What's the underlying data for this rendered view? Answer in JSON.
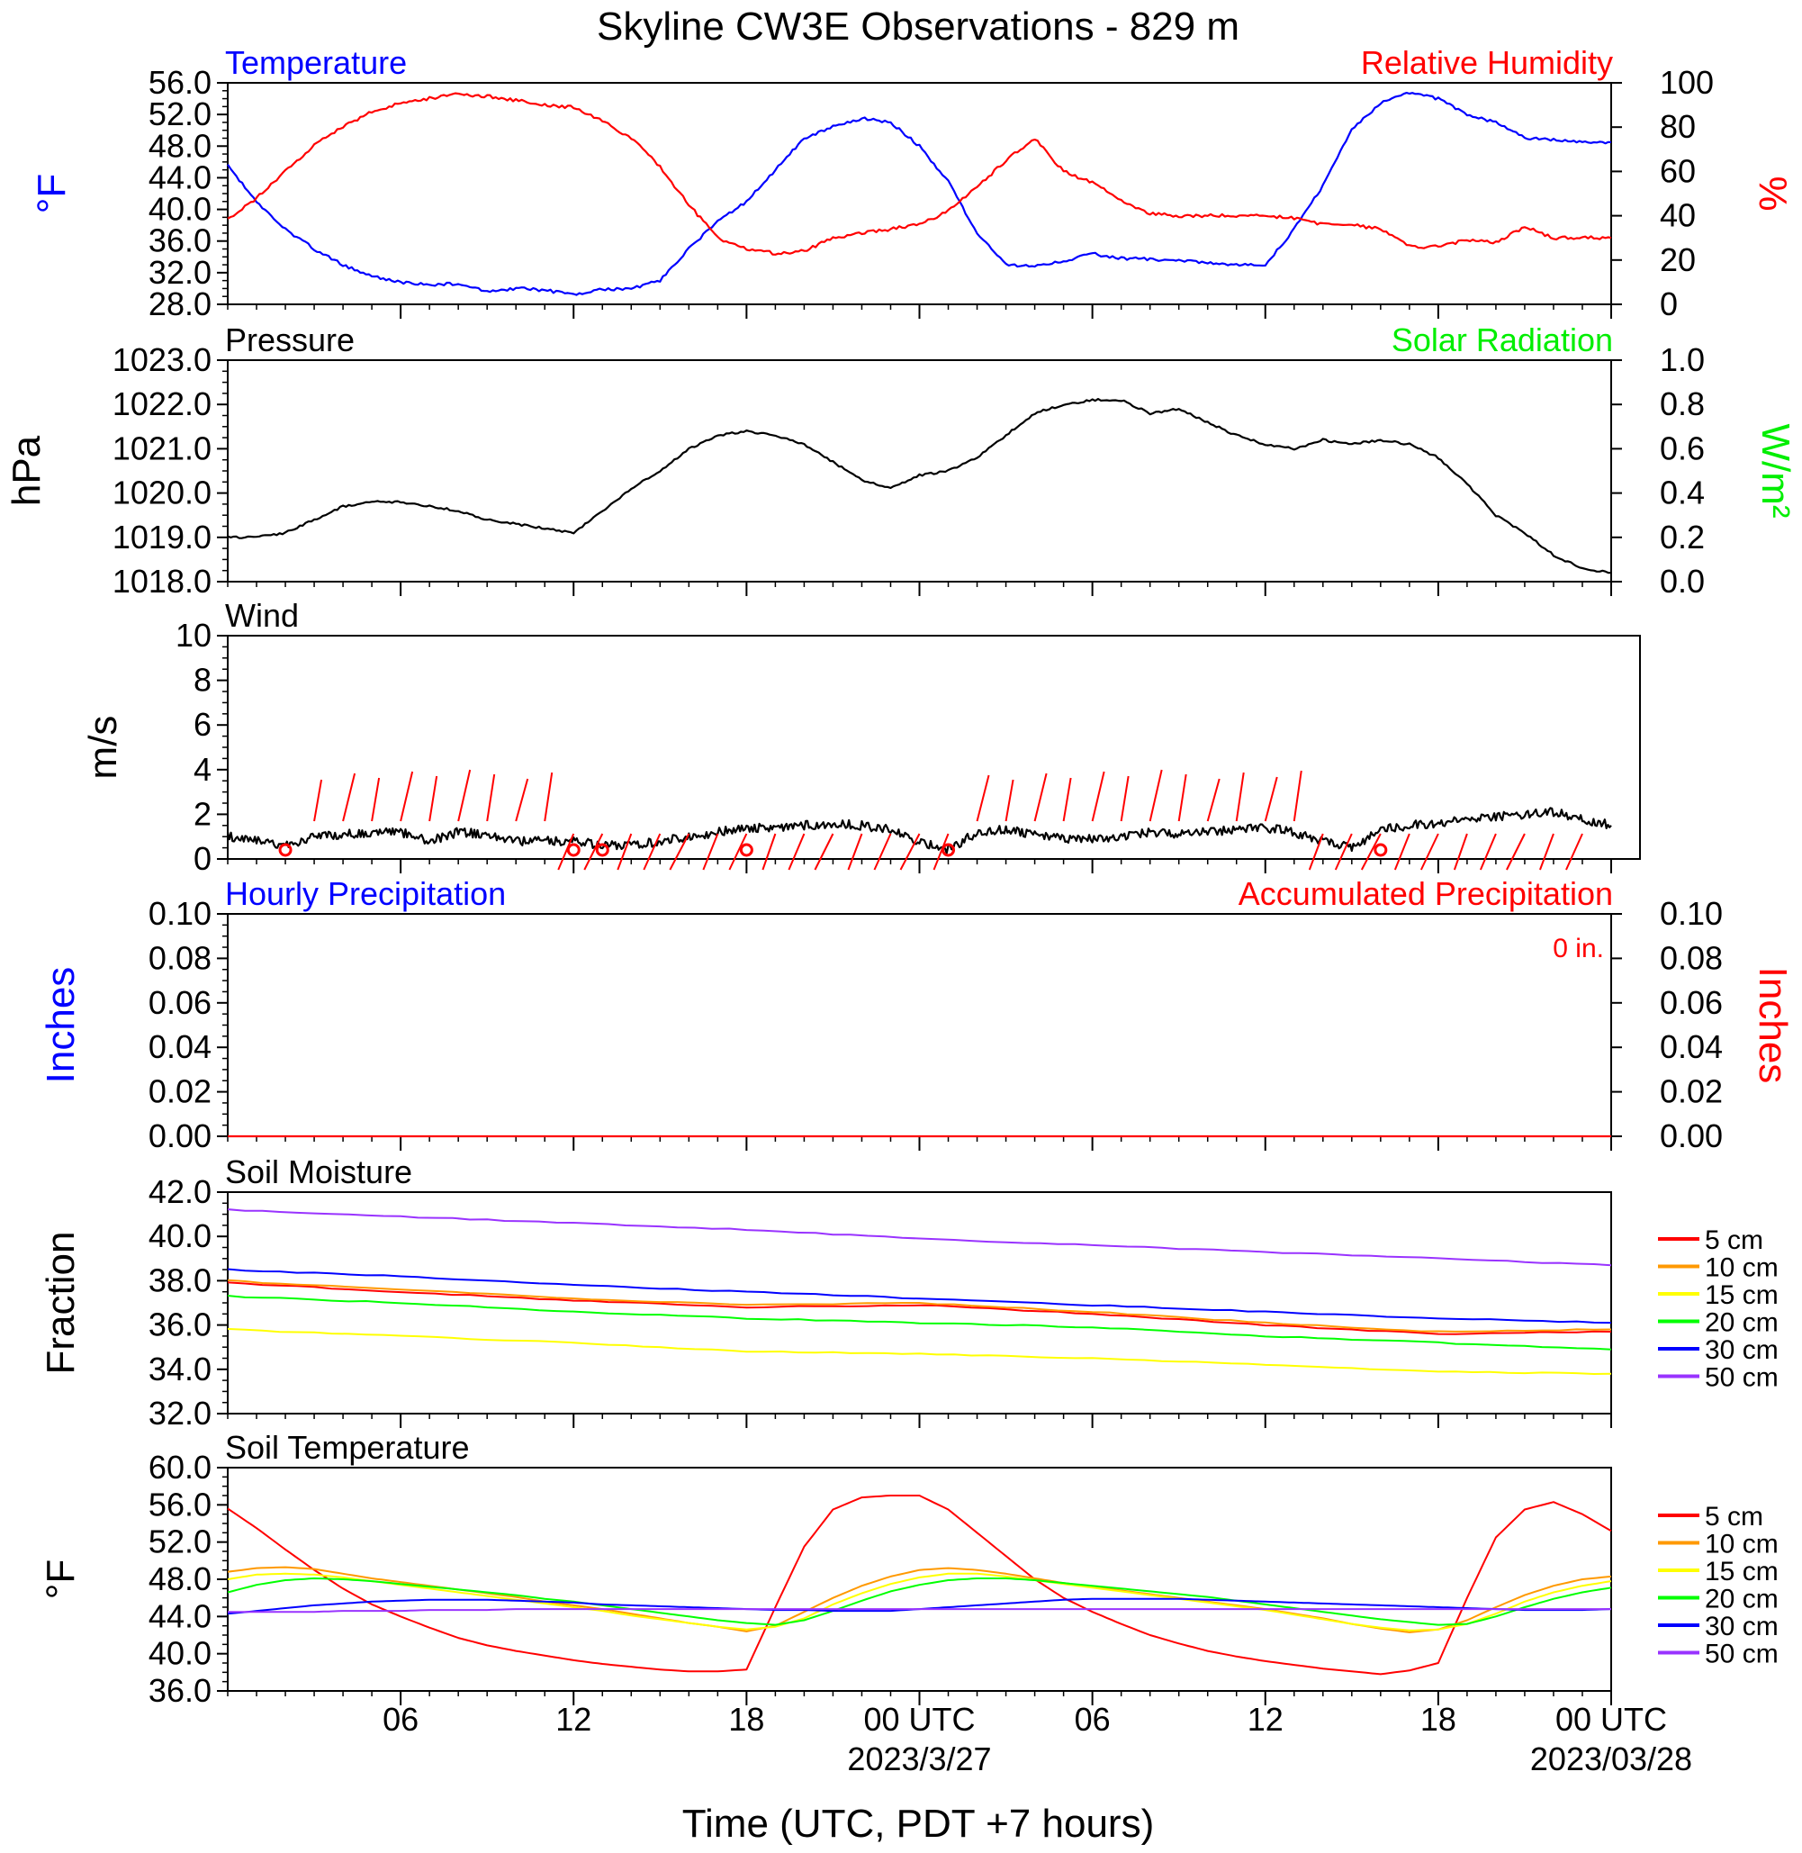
{
  "title": "Skyline CW3E Observations - 829 m",
  "xaxis": {
    "label": "Time (UTC, PDT +7 hours)",
    "ticks": [
      "06",
      "12",
      "18",
      "00 UTC",
      "06",
      "12",
      "18",
      "00 UTC"
    ],
    "dates": [
      "2023/3/27",
      "2023/03/28"
    ]
  },
  "colors": {
    "blue": "#0000ff",
    "red": "#ff0000",
    "green": "#00ff00",
    "black": "#000000"
  },
  "chart_data": [
    {
      "id": "temp_rh",
      "type": "line",
      "title_left": "Temperature",
      "title_right": "Relative Humidity",
      "ylabel_left": "°F",
      "ylabel_right": "%",
      "ylim": [
        28,
        56
      ],
      "ylim_right": [
        0,
        100
      ],
      "yticks": [
        "28.0",
        "32.0",
        "36.0",
        "40.0",
        "44.0",
        "48.0",
        "52.0",
        "56.0"
      ],
      "yticks_right": [
        "0",
        "20",
        "40",
        "60",
        "80",
        "100"
      ],
      "x_hours": [
        0,
        1,
        2,
        3,
        4,
        5,
        6,
        7,
        8,
        9,
        10,
        11,
        12,
        13,
        14,
        15,
        16,
        17,
        18,
        19,
        20,
        21,
        22,
        23,
        24,
        25,
        26,
        27,
        28,
        29,
        30,
        31,
        32,
        33,
        34,
        35,
        36,
        37,
        38,
        39,
        40,
        41,
        42,
        43,
        44,
        45,
        46,
        47,
        48
      ],
      "series": [
        {
          "name": "Temperature",
          "color": "#0000ff",
          "axis": "left",
          "values": [
            45.5,
            41,
            37.5,
            35,
            33,
            31.5,
            30.8,
            30.5,
            30.6,
            29.7,
            30,
            29.8,
            29.2,
            29.9,
            30,
            31,
            35,
            38.5,
            41,
            45,
            49,
            50.5,
            51.5,
            51,
            48,
            43.5,
            37,
            33,
            32.8,
            33.5,
            34.4,
            33.8,
            33.7,
            33.5,
            33.3,
            33,
            33,
            37.5,
            43,
            50,
            53.5,
            54.8,
            54,
            52,
            51,
            49,
            48.8,
            48.5,
            48.5
          ]
        },
        {
          "name": "Relative Humidity",
          "color": "#ff0000",
          "axis": "right",
          "values": [
            38,
            48,
            60,
            72,
            80,
            87,
            91,
            93,
            95,
            94,
            92,
            90,
            89,
            83,
            75,
            62,
            45,
            30,
            25,
            23,
            24,
            30,
            32,
            34,
            36,
            42,
            53,
            65,
            75,
            60,
            55,
            47,
            41,
            40,
            40,
            40,
            40,
            39,
            36,
            36,
            34,
            26,
            26,
            29,
            28,
            35,
            30,
            30,
            30
          ]
        }
      ]
    },
    {
      "id": "pressure",
      "type": "line",
      "title_left": "Pressure",
      "title_right": "Solar Radiation",
      "ylabel_left": "hPa",
      "ylabel_right": "W/m²",
      "ylim": [
        1018,
        1023
      ],
      "ylim_right": [
        0,
        1
      ],
      "yticks": [
        "1018.0",
        "1019.0",
        "1020.0",
        "1021.0",
        "1022.0",
        "1023.0"
      ],
      "yticks_right": [
        "0.0",
        "0.2",
        "0.4",
        "0.6",
        "0.8",
        "1.0"
      ],
      "x_hours": [
        0,
        1,
        2,
        3,
        4,
        5,
        6,
        7,
        8,
        9,
        10,
        11,
        12,
        13,
        14,
        15,
        16,
        17,
        18,
        19,
        20,
        21,
        22,
        23,
        24,
        25,
        26,
        27,
        28,
        29,
        30,
        31,
        32,
        33,
        34,
        35,
        36,
        37,
        38,
        39,
        40,
        41,
        42,
        43,
        44,
        45,
        46,
        47,
        48
      ],
      "series": [
        {
          "name": "Pressure",
          "color": "#000000",
          "axis": "left",
          "values": [
            1019,
            1019,
            1019.1,
            1019.4,
            1019.7,
            1019.8,
            1019.8,
            1019.7,
            1019.6,
            1019.4,
            1019.3,
            1019.2,
            1019.1,
            1019.6,
            1020.1,
            1020.5,
            1021,
            1021.3,
            1021.4,
            1021.3,
            1021.1,
            1020.7,
            1020.3,
            1020.1,
            1020.4,
            1020.5,
            1020.8,
            1021.3,
            1021.8,
            1022,
            1022.1,
            1022.1,
            1021.8,
            1021.9,
            1021.6,
            1021.3,
            1021.1,
            1021,
            1021.2,
            1021.1,
            1021.2,
            1021.1,
            1020.8,
            1020.2,
            1019.5,
            1019.1,
            1018.6,
            1018.3,
            1018.2
          ]
        }
      ]
    },
    {
      "id": "wind",
      "type": "line",
      "title_left": "Wind",
      "ylabel_left": "m/s",
      "ylim": [
        0,
        10
      ],
      "yticks": [
        "0",
        "2",
        "4",
        "6",
        "8",
        "10"
      ],
      "x_hours": [
        0,
        1,
        2,
        3,
        4,
        5,
        6,
        7,
        8,
        9,
        10,
        11,
        12,
        13,
        14,
        15,
        16,
        17,
        18,
        19,
        20,
        21,
        22,
        23,
        24,
        25,
        26,
        27,
        28,
        29,
        30,
        31,
        32,
        33,
        34,
        35,
        36,
        37,
        38,
        39,
        40,
        41,
        42,
        43,
        44,
        45,
        46,
        47,
        48
      ],
      "series": [
        {
          "name": "Wind",
          "color": "#000000",
          "axis": "left",
          "values": [
            1,
            0.8,
            0.6,
            1,
            1.1,
            1.2,
            1.2,
            0.8,
            1.2,
            1.1,
            0.8,
            0.8,
            0.8,
            0.6,
            0.6,
            0.8,
            1,
            1.2,
            1.4,
            1.4,
            1.5,
            1.6,
            1.5,
            1.3,
            0.8,
            0.4,
            1.2,
            1.3,
            1.1,
            0.9,
            0.9,
            1,
            1.2,
            1.1,
            1.2,
            1.3,
            1.4,
            1.2,
            0.8,
            0.5,
            1.3,
            1.5,
            1.6,
            1.8,
            1.9,
            2,
            2.1,
            1.8,
            1.5
          ]
        }
      ],
      "wind_barbs_hours": [
        3,
        4,
        5,
        6,
        7,
        8,
        9,
        10,
        11,
        12,
        13,
        14,
        15,
        16,
        17,
        18,
        19,
        20,
        21,
        22,
        23,
        24,
        25,
        26,
        27,
        28,
        29,
        30,
        31,
        32,
        33,
        34,
        35,
        36,
        37,
        38,
        39,
        40,
        41,
        42,
        43,
        44,
        45,
        46,
        47
      ],
      "calm_circles_hours": [
        2,
        12,
        13,
        18,
        25,
        40
      ]
    },
    {
      "id": "precip",
      "type": "line",
      "title_left": "Hourly Precipitation",
      "title_right": "Accumulated Precipitation",
      "annotation": "0 in.",
      "ylabel_left": "Inches",
      "ylabel_right": "Inches",
      "ylim": [
        0,
        0.1
      ],
      "yticks": [
        "0.00",
        "0.02",
        "0.04",
        "0.06",
        "0.08",
        "0.10"
      ],
      "yticks_right": [
        "0.00",
        "0.02",
        "0.04",
        "0.06",
        "0.08",
        "0.10"
      ],
      "series": [
        {
          "name": "Accumulated Precipitation",
          "color": "#ff0000",
          "axis": "right",
          "x_hours": [
            0,
            48
          ],
          "values": [
            0,
            0
          ]
        }
      ]
    },
    {
      "id": "soil_moist",
      "type": "line",
      "title_left": "Soil Moisture",
      "ylabel_left": "Fraction",
      "ylim": [
        32,
        42
      ],
      "yticks": [
        "32.0",
        "34.0",
        "36.0",
        "38.0",
        "40.0",
        "42.0"
      ],
      "x_hours": [
        0,
        6,
        12,
        18,
        24,
        30,
        36,
        42,
        48
      ],
      "series": [
        {
          "name": "5 cm",
          "color": "#ff0000",
          "values": [
            37.9,
            37.5,
            37.1,
            36.8,
            36.9,
            36.5,
            36.0,
            35.6,
            35.7
          ]
        },
        {
          "name": "10 cm",
          "color": "#ff9900",
          "values": [
            38.0,
            37.6,
            37.2,
            36.9,
            37.0,
            36.6,
            36.1,
            35.7,
            35.8
          ]
        },
        {
          "name": "15 cm",
          "color": "#ffff00",
          "values": [
            35.8,
            35.5,
            35.2,
            34.8,
            34.7,
            34.5,
            34.2,
            33.9,
            33.8
          ]
        },
        {
          "name": "20 cm",
          "color": "#00ff00",
          "values": [
            37.3,
            37.0,
            36.6,
            36.3,
            36.1,
            35.9,
            35.5,
            35.2,
            34.9
          ]
        },
        {
          "name": "30 cm",
          "color": "#0000ff",
          "values": [
            38.5,
            38.2,
            37.8,
            37.5,
            37.2,
            36.9,
            36.6,
            36.3,
            36.1
          ]
        },
        {
          "name": "50 cm",
          "color": "#9933ff",
          "values": [
            41.2,
            40.9,
            40.6,
            40.3,
            39.9,
            39.6,
            39.3,
            39.0,
            38.7
          ]
        }
      ]
    },
    {
      "id": "soil_temp",
      "type": "line",
      "title_left": "Soil Temperature",
      "ylabel_left": "°F",
      "ylim": [
        36,
        60
      ],
      "yticks": [
        "36.0",
        "40.0",
        "44.0",
        "48.0",
        "52.0",
        "56.0",
        "60.0"
      ],
      "x_hours": [
        0,
        1,
        2,
        3,
        4,
        5,
        6,
        7,
        8,
        9,
        10,
        11,
        12,
        13,
        14,
        15,
        16,
        17,
        18,
        19,
        20,
        21,
        22,
        23,
        24,
        25,
        26,
        27,
        28,
        29,
        30,
        31,
        32,
        33,
        34,
        35,
        36,
        37,
        38,
        39,
        40,
        41,
        42,
        43,
        44,
        45,
        46,
        47,
        48
      ],
      "series": [
        {
          "name": "5 cm",
          "color": "#ff0000",
          "values": [
            55.6,
            53.5,
            51.2,
            49,
            47,
            45.3,
            44,
            42.8,
            41.7,
            40.9,
            40.3,
            39.8,
            39.3,
            38.9,
            38.6,
            38.3,
            38.1,
            38.1,
            38.3,
            45,
            51.5,
            55.5,
            56.8,
            57,
            57,
            55.5,
            53,
            50.5,
            48,
            46,
            44.5,
            43.2,
            42,
            41.1,
            40.3,
            39.7,
            39.2,
            38.8,
            38.4,
            38.1,
            37.8,
            38.2,
            39,
            46,
            52.5,
            55.5,
            56.3,
            55,
            53.2
          ]
        },
        {
          "name": "10 cm",
          "color": "#ff9900",
          "values": [
            48.8,
            49.2,
            49.3,
            49.1,
            48.6,
            48.1,
            47.7,
            47.3,
            46.9,
            46.5,
            46.1,
            45.6,
            45.2,
            44.8,
            44.3,
            43.8,
            43.3,
            42.9,
            42.4,
            43,
            44.5,
            46,
            47.3,
            48.3,
            49,
            49.2,
            49,
            48.6,
            48.1,
            47.6,
            47.2,
            46.8,
            46.4,
            46,
            45.6,
            45.2,
            44.8,
            44.3,
            43.8,
            43.2,
            42.7,
            42.3,
            42.6,
            43.6,
            45,
            46.3,
            47.3,
            48,
            48.3
          ]
        },
        {
          "name": "15 cm",
          "color": "#ffff00",
          "values": [
            48,
            48.5,
            48.6,
            48.5,
            48.2,
            47.8,
            47.4,
            47,
            46.6,
            46.2,
            45.8,
            45.4,
            45,
            44.6,
            44.1,
            43.7,
            43.3,
            42.9,
            42.6,
            42.9,
            43.8,
            45.3,
            46.5,
            47.5,
            48.2,
            48.6,
            48.6,
            48.3,
            47.9,
            47.5,
            47.1,
            46.7,
            46.3,
            45.9,
            45.5,
            45.1,
            44.7,
            44.2,
            43.7,
            43.2,
            42.8,
            42.5,
            42.6,
            43.2,
            44.3,
            45.6,
            46.6,
            47.3,
            47.8
          ]
        },
        {
          "name": "20 cm",
          "color": "#00ff00",
          "values": [
            46.6,
            47.4,
            47.9,
            48.1,
            48,
            47.8,
            47.5,
            47.2,
            46.9,
            46.6,
            46.3,
            45.9,
            45.6,
            45.2,
            44.8,
            44.4,
            44,
            43.6,
            43.3,
            43.1,
            43.6,
            44.6,
            45.7,
            46.7,
            47.4,
            47.9,
            48.1,
            48.1,
            47.9,
            47.6,
            47.3,
            47,
            46.7,
            46.4,
            46.1,
            45.7,
            45.3,
            44.9,
            44.5,
            44.1,
            43.7,
            43.4,
            43.1,
            43.2,
            44,
            45,
            45.9,
            46.6,
            47.1
          ]
        },
        {
          "name": "30 cm",
          "color": "#0000ff",
          "values": [
            44.3,
            44.6,
            44.9,
            45.2,
            45.4,
            45.6,
            45.7,
            45.8,
            45.8,
            45.8,
            45.7,
            45.6,
            45.5,
            45.3,
            45.2,
            45.1,
            45,
            44.9,
            44.8,
            44.7,
            44.7,
            44.6,
            44.6,
            44.6,
            44.8,
            45,
            45.2,
            45.4,
            45.6,
            45.8,
            45.9,
            45.9,
            45.9,
            45.9,
            45.8,
            45.7,
            45.6,
            45.5,
            45.4,
            45.3,
            45.2,
            45.1,
            45,
            44.9,
            44.8,
            44.7,
            44.7,
            44.7,
            44.8
          ]
        },
        {
          "name": "50 cm",
          "color": "#9933ff",
          "values": [
            44.5,
            44.5,
            44.5,
            44.5,
            44.6,
            44.6,
            44.6,
            44.7,
            44.7,
            44.7,
            44.8,
            44.8,
            44.8,
            44.8,
            44.8,
            44.8,
            44.8,
            44.8,
            44.8,
            44.8,
            44.8,
            44.8,
            44.8,
            44.8,
            44.8,
            44.8,
            44.8,
            44.8,
            44.8,
            44.8,
            44.8,
            44.8,
            44.8,
            44.8,
            44.8,
            44.8,
            44.8,
            44.8,
            44.8,
            44.8,
            44.8,
            44.8,
            44.8,
            44.8,
            44.8,
            44.8,
            44.8,
            44.8,
            44.8
          ]
        }
      ]
    }
  ]
}
